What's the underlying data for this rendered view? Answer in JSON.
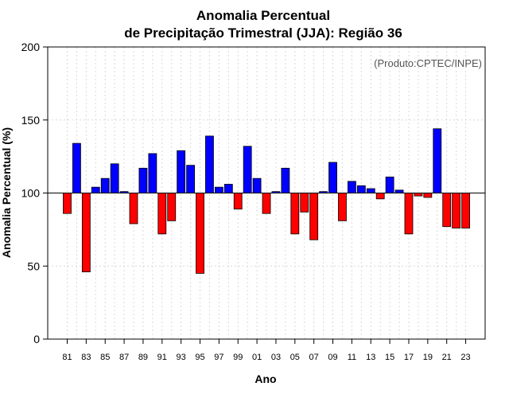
{
  "chart_data": {
    "type": "bar",
    "title_line1": "Anomalia Percentual",
    "title_line2": "de Precipitação Trimestral (JJA): Região 36",
    "credit": "(Produto:CPTEC/INPE)",
    "xlabel": "Ano",
    "ylabel": "Anomalia Percentual (%)",
    "ylim": [
      0,
      200
    ],
    "yticks": [
      0,
      50,
      100,
      150,
      200
    ],
    "baseline": 100,
    "grid": true,
    "categories": [
      "1981",
      "1982",
      "1983",
      "1984",
      "1985",
      "1986",
      "1987",
      "1988",
      "1989",
      "1990",
      "1991",
      "1992",
      "1993",
      "1994",
      "1995",
      "1996",
      "1997",
      "1998",
      "1999",
      "2000",
      "2001",
      "2002",
      "2003",
      "2004",
      "2005",
      "2006",
      "2007",
      "2008",
      "2009",
      "2010",
      "2011",
      "2012",
      "2013",
      "2014",
      "2015",
      "2016",
      "2017",
      "2018",
      "2019",
      "2020",
      "2021",
      "2022",
      "2023"
    ],
    "xtick_labels": [
      {
        "index": 0,
        "label": "81"
      },
      {
        "index": 2,
        "label": "83"
      },
      {
        "index": 4,
        "label": "85"
      },
      {
        "index": 6,
        "label": "87"
      },
      {
        "index": 8,
        "label": "89"
      },
      {
        "index": 10,
        "label": "91"
      },
      {
        "index": 12,
        "label": "93"
      },
      {
        "index": 14,
        "label": "95"
      },
      {
        "index": 16,
        "label": "97"
      },
      {
        "index": 18,
        "label": "99"
      },
      {
        "index": 20,
        "label": "01"
      },
      {
        "index": 22,
        "label": "03"
      },
      {
        "index": 24,
        "label": "05"
      },
      {
        "index": 26,
        "label": "07"
      },
      {
        "index": 28,
        "label": "09"
      },
      {
        "index": 30,
        "label": "11"
      },
      {
        "index": 32,
        "label": "13"
      },
      {
        "index": 34,
        "label": "15"
      },
      {
        "index": 36,
        "label": "17"
      },
      {
        "index": 38,
        "label": "19"
      },
      {
        "index": 40,
        "label": "21"
      },
      {
        "index": 42,
        "label": "23"
      }
    ],
    "values": [
      86,
      134,
      46,
      104,
      110,
      120,
      101,
      79,
      117,
      127,
      72,
      81,
      129,
      119,
      45,
      139,
      104,
      106,
      89,
      132,
      110,
      86,
      101,
      117,
      72,
      87,
      68,
      101,
      121,
      81,
      108,
      105,
      103,
      96,
      111,
      102,
      72,
      98,
      97,
      144,
      77,
      76,
      76
    ],
    "colors": {
      "above": "#0000ff",
      "below": "#ff0000",
      "grid": "#d9d9d9",
      "axis": "#000000",
      "credit": "#555555"
    }
  }
}
